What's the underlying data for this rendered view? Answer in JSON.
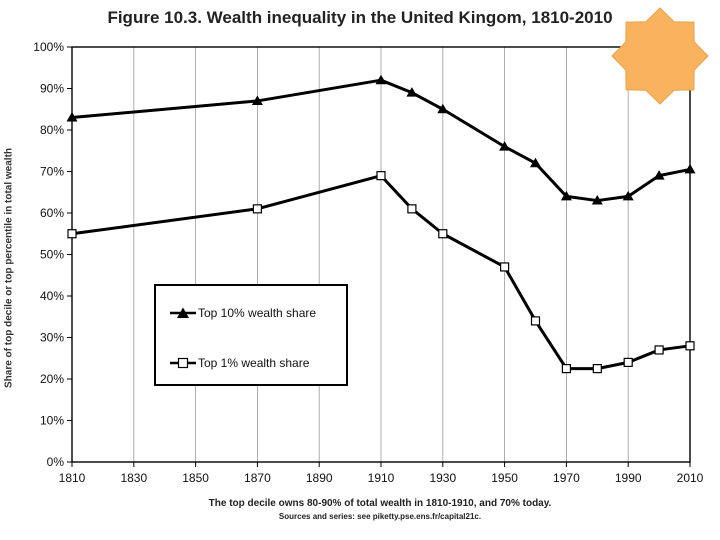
{
  "chart_data": {
    "type": "line",
    "title": "Figure 10.3. Wealth inequality in the United Kingom, 1810-2010",
    "xlabel": "",
    "ylabel": "Share of top decile or top percentile in total wealth",
    "xlim": [
      1810,
      2010
    ],
    "ylim": [
      0,
      100
    ],
    "x_ticks": [
      "1810",
      "1830",
      "1850",
      "1870",
      "1890",
      "1910",
      "1930",
      "1950",
      "1970",
      "1990",
      "2010"
    ],
    "y_ticks": [
      "0%",
      "10%",
      "20%",
      "30%",
      "40%",
      "50%",
      "60%",
      "70%",
      "80%",
      "90%",
      "100%"
    ],
    "grid": "vertical",
    "legend_position": "lower-left",
    "series": [
      {
        "name": "Top 10% wealth share",
        "marker": "triangle",
        "x": [
          1810,
          1870,
          1910,
          1920,
          1930,
          1950,
          1960,
          1970,
          1980,
          1990,
          2000,
          2010
        ],
        "values": [
          83,
          87,
          92,
          89,
          85,
          76,
          72,
          64,
          63,
          64,
          69,
          70.5
        ]
      },
      {
        "name": "Top 1% wealth share",
        "marker": "open-square",
        "x": [
          1810,
          1870,
          1910,
          1920,
          1930,
          1950,
          1960,
          1970,
          1980,
          1990,
          2000,
          2010
        ],
        "values": [
          55,
          61,
          69,
          61,
          55,
          47,
          34,
          22.5,
          22.5,
          24,
          27,
          28
        ]
      }
    ]
  },
  "caption": "The top decile owns 80-90% of total wealth in 1810-1910, and 70% today.",
  "source": "Sources and series: see piketty.pse.ens.fr/capital21c.",
  "badge": {
    "color": "#F9B35E",
    "icon": "sun-burst-icon"
  }
}
